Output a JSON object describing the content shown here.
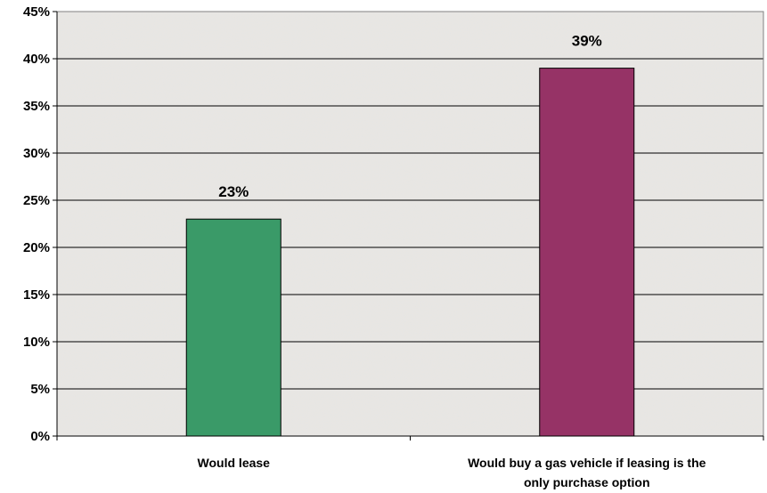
{
  "chart_data": {
    "type": "bar",
    "categories": [
      [
        "Would lease"
      ],
      [
        "Would buy a gas vehicle if leasing is the",
        "only purchase option"
      ]
    ],
    "values": [
      23,
      39
    ],
    "value_labels": [
      "23%",
      "39%"
    ],
    "colors": [
      "#3a9a68",
      "#963366"
    ],
    "ylim": [
      0,
      45
    ],
    "yticks": [
      0,
      5,
      10,
      15,
      20,
      25,
      30,
      35,
      40,
      45
    ],
    "ytick_labels": [
      "0%",
      "5%",
      "10%",
      "15%",
      "20%",
      "25%",
      "30%",
      "35%",
      "40%",
      "45%"
    ],
    "grid": true,
    "legend": "none",
    "plot_background": "textured light gray"
  }
}
